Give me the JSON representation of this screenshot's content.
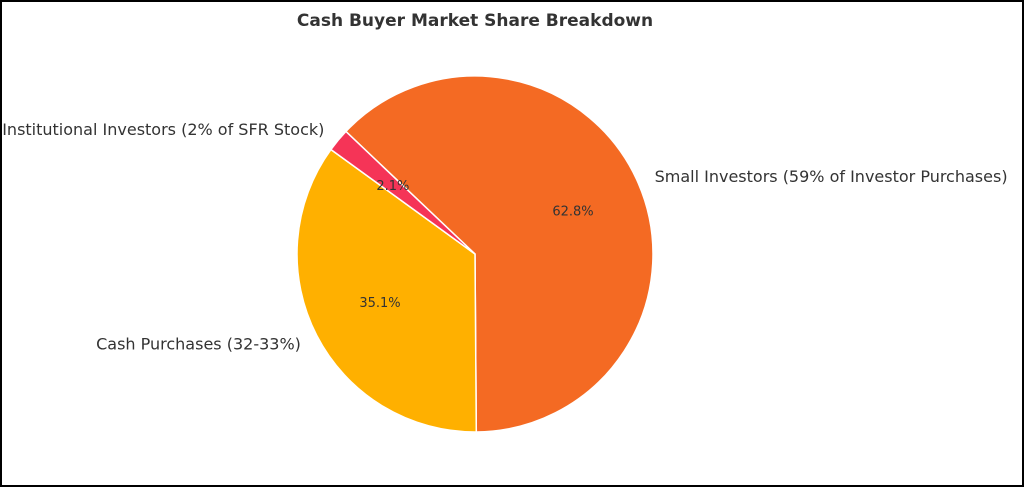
{
  "chart_data": {
    "type": "pie",
    "title": "Cash Buyer Market Share Breakdown",
    "categories": [
      "Small Investors (59% of Investor Purchases)",
      "Cash Purchases (32-33%)",
      "Institutional Investors (2% of SFR Stock)"
    ],
    "values": [
      62.8,
      35.1,
      2.1
    ],
    "percent_labels": [
      "62.8%",
      "35.1%",
      "2.1%"
    ],
    "colors": [
      "#F46A23",
      "#FFB000",
      "#F53457"
    ],
    "start_angle_deg": 136.5,
    "direction": "clockwise",
    "legend": "none"
  }
}
